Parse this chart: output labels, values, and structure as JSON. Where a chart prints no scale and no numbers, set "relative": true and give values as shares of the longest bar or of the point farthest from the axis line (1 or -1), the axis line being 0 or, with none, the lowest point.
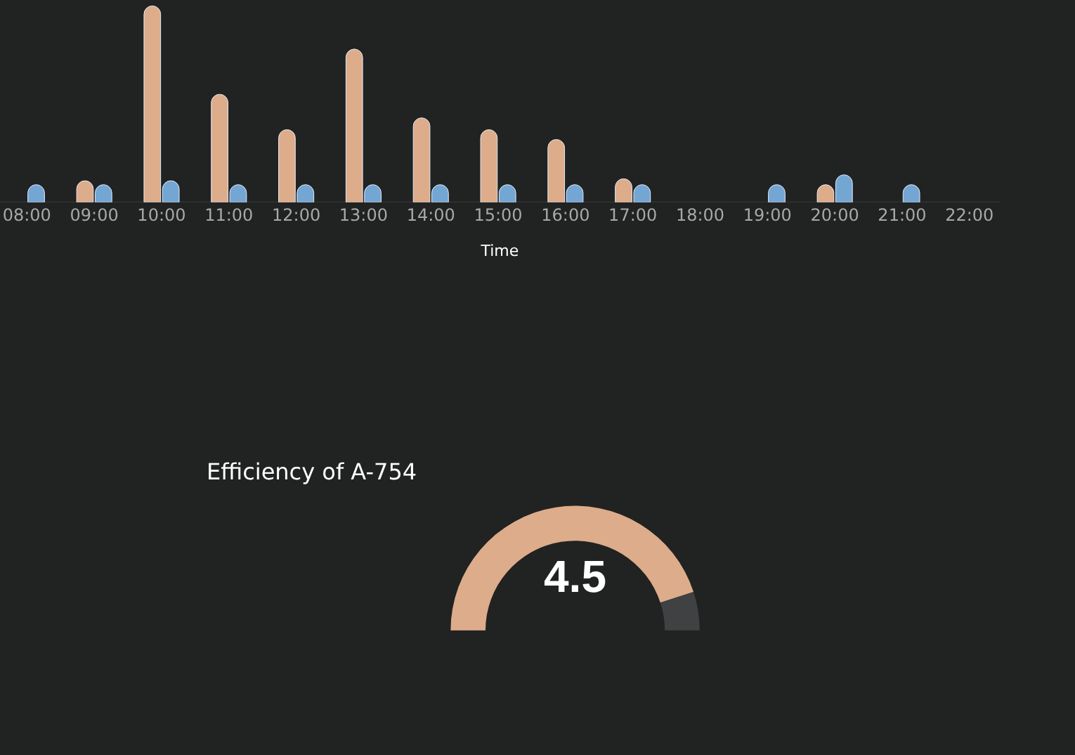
{
  "chart_data": [
    {
      "type": "bar",
      "xlabel": "Time",
      "relative": true,
      "categories": [
        "08:00",
        "09:00",
        "10:00",
        "11:00",
        "12:00",
        "13:00",
        "14:00",
        "15:00",
        "16:00",
        "17:00",
        "18:00",
        "19:00",
        "20:00",
        "21:00",
        "22:00"
      ],
      "series": [
        {
          "color": "#ddac8a",
          "values": [
            null,
            0.11,
            1,
            0.55,
            0.37,
            0.78,
            0.43,
            0.37,
            0.32,
            0.12,
            null,
            null,
            0.09,
            null,
            null
          ]
        },
        {
          "color": "#74a6d4",
          "values": [
            0.09,
            0.09,
            0.11,
            0.09,
            0.09,
            0.09,
            0.09,
            0.09,
            0.09,
            0.09,
            null,
            0.09,
            0.14,
            0.09,
            null
          ]
        }
      ]
    },
    {
      "type": "donut",
      "title": "Efficiency of A-754",
      "categories": [
        null,
        null
      ],
      "values": [
        90,
        10
      ],
      "colors": [
        "#ddac8a",
        "#3f4142"
      ],
      "annotations": [
        "4.5"
      ]
    }
  ]
}
